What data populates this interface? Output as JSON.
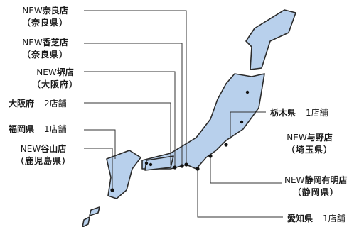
{
  "map": {
    "land_color": "#b8d0ec",
    "outline_color": "#2b2b2b",
    "leader_color": "#333333",
    "marker_color": "#111111"
  },
  "stores": [
    {
      "prefix": "NEW",
      "name": "奈良店",
      "pref": "（奈良県）"
    },
    {
      "prefix": "NEW",
      "name": "香芝店",
      "pref": "（奈良県）"
    },
    {
      "prefix": "NEW",
      "name": "堺店",
      "pref": "（大阪府）"
    },
    {
      "prefix": "",
      "name": "大阪府",
      "count": "2店舗"
    },
    {
      "prefix": "",
      "name": "福岡県",
      "count": "1店舗"
    },
    {
      "prefix": "NEW",
      "name": "谷山店",
      "pref": "（鹿児島県）"
    },
    {
      "prefix": "",
      "name": "栃木県",
      "count": "1店舗"
    },
    {
      "prefix": "NEW",
      "name": "与野店",
      "pref": "（埼玉県）"
    },
    {
      "prefix": "NEW",
      "name": "静岡有明店",
      "pref": "（静岡県）"
    },
    {
      "prefix": "",
      "name": "愛知県",
      "count": "1店舗"
    }
  ]
}
